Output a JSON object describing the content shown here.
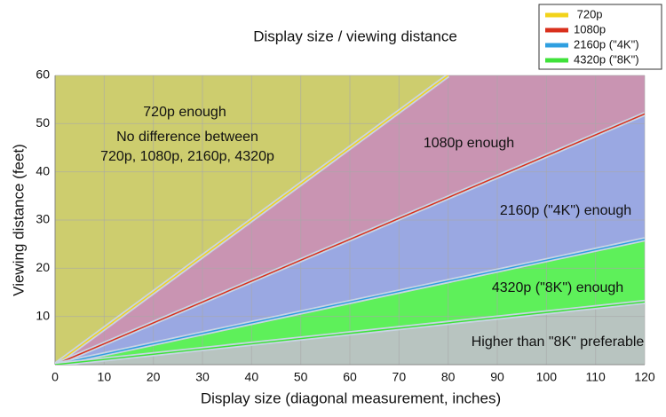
{
  "chart_data": {
    "type": "line",
    "title": "Display size / viewing distance",
    "x_label": "Display size (diagonal measurement, inches)",
    "y_label": "Viewing distance (feet)",
    "xlim": [
      0,
      120
    ],
    "ylim": [
      0,
      60
    ],
    "xticks": [
      0,
      10,
      20,
      30,
      40,
      50,
      60,
      70,
      80,
      90,
      100,
      110,
      120
    ],
    "yticks": [
      10,
      20,
      30,
      40,
      50,
      60
    ],
    "grid": true,
    "legend": "top-right",
    "background_color": "#cdcd6e",
    "series": [
      {
        "name": " 720p",
        "color": "#f2d31b",
        "area_color": "#c994b2",
        "x": [
          0,
          80
        ],
        "values": [
          0,
          60
        ]
      },
      {
        "name": "1080p",
        "color": "#d9301c",
        "area_color": "#9aa8e2",
        "x": [
          0,
          120
        ],
        "values": [
          0,
          52
        ]
      },
      {
        "name": "2160p (\"4K\")",
        "color": "#2f9fe0",
        "area_color": "#5ef05a",
        "x": [
          0,
          120
        ],
        "values": [
          0,
          26
        ]
      },
      {
        "name": "4320p (\"8K\")",
        "color": "#3fe23a",
        "area_color": "#b8c4c0",
        "x": [
          0,
          120
        ],
        "values": [
          0,
          13
        ]
      }
    ],
    "annotations": [
      "720p enough",
      "No difference between",
      "720p, 1080p, 2160p, 4320p",
      "1080p enough",
      "2160p (\"4K\") enough",
      "4320p (\"8K\") enough",
      "Higher than \"8K\" preferable"
    ]
  }
}
